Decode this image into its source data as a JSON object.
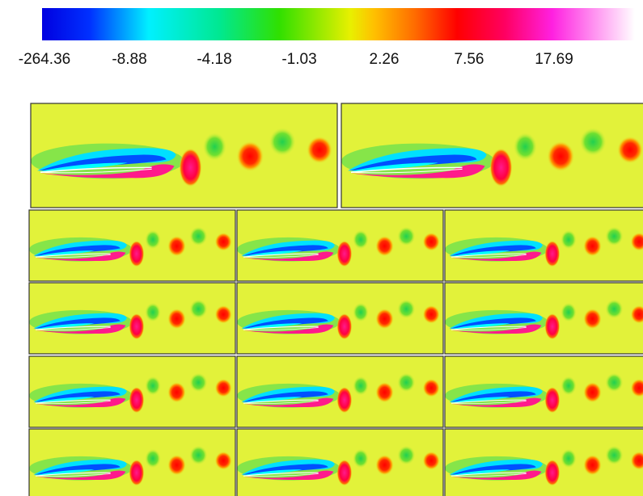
{
  "colorbar": {
    "labels": [
      "-264.36",
      "-8.88",
      "-4.18",
      "-1.03",
      "2.26",
      "7.56",
      "17.69"
    ]
  }
}
